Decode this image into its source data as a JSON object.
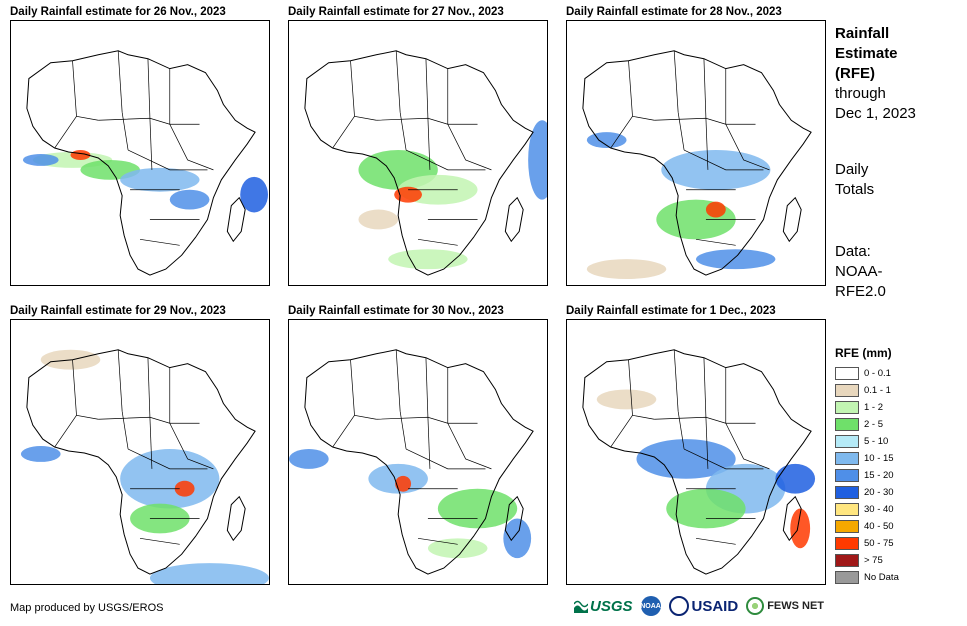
{
  "panels": [
    {
      "title": "Daily Rainfall estimate for 26 Nov., 2023"
    },
    {
      "title": "Daily Rainfall estimate for 27 Nov., 2023"
    },
    {
      "title": "Daily Rainfall estimate for 28 Nov., 2023"
    },
    {
      "title": "Daily Rainfall estimate for 29 Nov., 2023"
    },
    {
      "title": "Daily Rainfall estimate for 30 Nov., 2023"
    },
    {
      "title": "Daily Rainfall estimate for 1 Dec., 2023"
    }
  ],
  "side": {
    "title_line1": "Rainfall",
    "title_line2": "Estimate",
    "title_line3": "(RFE)",
    "through_line1": "through",
    "through_line2": "Dec 1, 2023",
    "totals_line1": "Daily",
    "totals_line2": "Totals",
    "source_line1": "Data:",
    "source_line2": "NOAA-",
    "source_line3": "RFE2.0"
  },
  "legend": {
    "title": "RFE (mm)",
    "classes": [
      {
        "label": "0 - 0.1",
        "color": "#ffffff"
      },
      {
        "label": "0.1 - 1",
        "color": "#e8d7bd"
      },
      {
        "label": "1 - 2",
        "color": "#c2f5b2"
      },
      {
        "label": "2 - 5",
        "color": "#6fe06a"
      },
      {
        "label": "5 - 10",
        "color": "#b5eaf7"
      },
      {
        "label": "10 - 15",
        "color": "#7fb9ee"
      },
      {
        "label": "15 - 20",
        "color": "#4f8fe8"
      },
      {
        "label": "20 - 30",
        "color": "#1f5fe0"
      },
      {
        "label": "30 - 40",
        "color": "#ffe680"
      },
      {
        "label": "40 - 50",
        "color": "#f5a800"
      },
      {
        "label": "50 - 75",
        "color": "#ff3a00"
      },
      {
        "label": "> 75",
        "color": "#a01818"
      },
      {
        "label": "No Data",
        "color": "#999999"
      }
    ]
  },
  "credit": "Map produced by USGS/EROS",
  "logos": {
    "usgs": "USGS",
    "noaa": "NOAA",
    "usaid": "USAID",
    "fews": "FEWS NET"
  }
}
